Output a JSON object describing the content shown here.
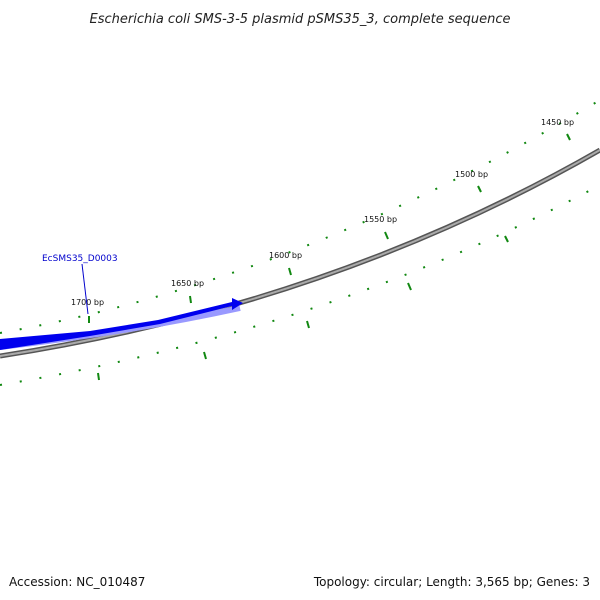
{
  "title": "Escherichia coli SMS-3-5 plasmid pSMS35_3, complete sequence",
  "footer": {
    "accession": "Accession: NC_010487",
    "summary": "Topology: circular; Length: 3,565 bp; Genes: 3"
  },
  "ticks": {
    "labels": [
      "1450 bp",
      "1500 bp",
      "1550 bp",
      "1600 bp",
      "1650 bp",
      "1700 bp"
    ],
    "color": "#118811"
  },
  "genes": [
    {
      "label": "EcSMS35_D0003",
      "color": "#0000ee"
    }
  ],
  "backbone_color": "#888888"
}
